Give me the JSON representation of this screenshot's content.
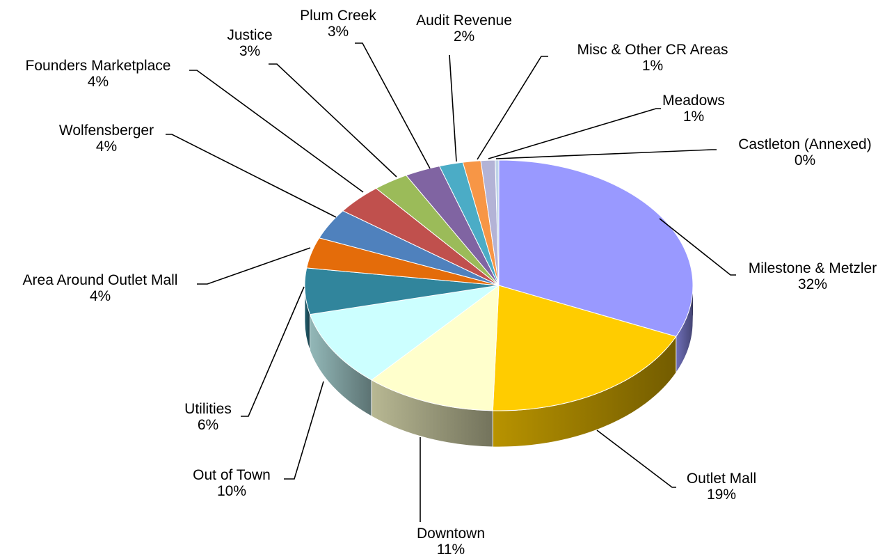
{
  "chart_data": {
    "type": "pie",
    "title": "",
    "three_d": true,
    "legend": "none",
    "slices": [
      {
        "name": "Milestone & Metzler",
        "label": "32%",
        "value": 32,
        "color": "#9999FF"
      },
      {
        "name": "Outlet Mall",
        "label": "19%",
        "value": 19,
        "color": "#FFCC00"
      },
      {
        "name": "Downtown",
        "label": "11%",
        "value": 11,
        "color": "#FFFFCC"
      },
      {
        "name": "Out of Town",
        "label": "10%",
        "value": 10,
        "color": "#CCFFFF"
      },
      {
        "name": "Utilities",
        "label": "6%",
        "value": 6,
        "color": "#31859C"
      },
      {
        "name": "Area Around Outlet Mall",
        "label": "4%",
        "value": 4,
        "color": "#E46C0A"
      },
      {
        "name": "Wolfensberger",
        "label": "4%",
        "value": 4,
        "color": "#4F81BD"
      },
      {
        "name": "Founders Marketplace",
        "label": "4%",
        "value": 4,
        "color": "#C0504D"
      },
      {
        "name": "Justice",
        "label": "3%",
        "value": 3,
        "color": "#9BBB59"
      },
      {
        "name": "Plum Creek",
        "label": "3%",
        "value": 3,
        "color": "#8064A2"
      },
      {
        "name": "Audit Revenue",
        "label": "2%",
        "value": 2,
        "color": "#4BACC6"
      },
      {
        "name": "Misc & Other CR Areas",
        "label": "1%",
        "value": 1.5,
        "color": "#F79646"
      },
      {
        "name": "Meadows",
        "label": "1%",
        "value": 1.2,
        "color": "#B3B3D6"
      },
      {
        "name": "Castleton (Annexed)",
        "label": "0%",
        "value": 0.3,
        "color": "#BFD4E8"
      }
    ]
  }
}
